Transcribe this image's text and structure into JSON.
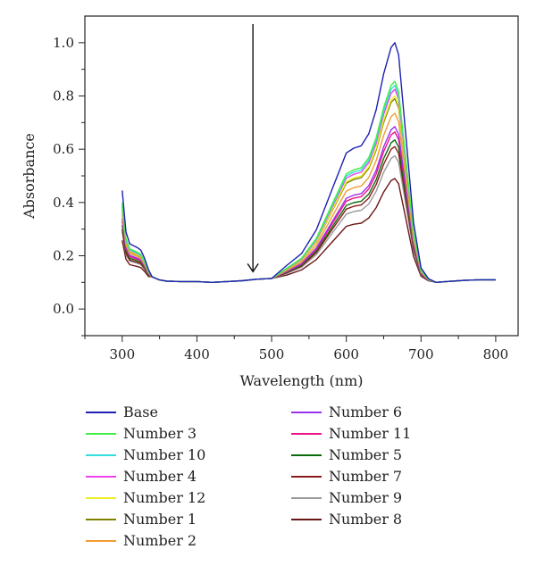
{
  "chart_data": {
    "type": "line",
    "xlabel": "Wavelength (nm)",
    "ylabel": "Absorbance",
    "xlim": [
      250,
      830
    ],
    "ylim": [
      -0.1,
      1.1
    ],
    "xticks": [
      300,
      400,
      500,
      600,
      700,
      800
    ],
    "yticks": [
      0.0,
      0.2,
      0.4,
      0.6,
      0.8,
      1.0
    ],
    "ytick_labels": [
      "0.0",
      "0.2",
      "0.4",
      "0.6",
      "0.8",
      "1.0"
    ],
    "grid": false,
    "legend_position": "bottom",
    "annotations": [
      {
        "type": "arrow",
        "x": 475,
        "y_start": 1.07,
        "y_end": 0.14,
        "direction": "down"
      }
    ],
    "base_profile": {
      "x": [
        300,
        305,
        310,
        315,
        320,
        325,
        330,
        335,
        340,
        350,
        360,
        380,
        400,
        420,
        440,
        460,
        480,
        500,
        520,
        540,
        560,
        580,
        600,
        610,
        620,
        630,
        640,
        650,
        660,
        665,
        670,
        680,
        690,
        700,
        710,
        720,
        740,
        760,
        780,
        800
      ],
      "y": [
        1.0,
        0.55,
        0.42,
        0.4,
        0.38,
        0.35,
        0.26,
        0.14,
        0.07,
        0.03,
        0.015,
        0.01,
        0.01,
        0.0,
        0.01,
        0.02,
        0.04,
        0.05,
        0.07,
        0.12,
        0.22,
        0.38,
        0.54,
        0.56,
        0.57,
        0.62,
        0.72,
        0.87,
        0.98,
        1.0,
        0.95,
        0.6,
        0.25,
        0.06,
        0.015,
        0.0,
        0.01,
        0.02,
        0.025,
        0.025
      ],
      "baseline": 0.1
    },
    "series": [
      {
        "name": "Base",
        "color": "#1f1fb4",
        "peak": 1.0,
        "start": 0.445
      },
      {
        "name": "Number 3",
        "color": "#44ee44",
        "peak": 0.855,
        "start": 0.4
      },
      {
        "name": "Number 10",
        "color": "#33dddd",
        "peak": 0.84,
        "start": 0.39
      },
      {
        "name": "Number 4",
        "color": "#ee44ee",
        "peak": 0.825,
        "start": 0.385
      },
      {
        "name": "Number 12",
        "color": "#eeee22",
        "peak": 0.8,
        "start": 0.375
      },
      {
        "name": "Number 1",
        "color": "#808000",
        "peak": 0.79,
        "start": 0.37
      },
      {
        "name": "Number 2",
        "color": "#f39c34",
        "peak": 0.735,
        "start": 0.355
      },
      {
        "name": "Number 6",
        "color": "#9b30ee",
        "peak": 0.685,
        "start": 0.34
      },
      {
        "name": "Number 11",
        "color": "#ee1188",
        "peak": 0.665,
        "start": 0.33
      },
      {
        "name": "Number 5",
        "color": "#0b6b0b",
        "peak": 0.635,
        "start": 0.315
      },
      {
        "name": "Number 7",
        "color": "#8b1a1a",
        "peak": 0.61,
        "start": 0.3
      },
      {
        "name": "Number 9",
        "color": "#999999",
        "peak": 0.575,
        "start": 0.29
      },
      {
        "name": "Number 8",
        "color": "#6b1616",
        "peak": 0.49,
        "start": 0.258
      }
    ],
    "legend_columns": [
      [
        "Base",
        "Number 3",
        "Number 10",
        "Number 4",
        "Number 12",
        "Number 1",
        "Number 2"
      ],
      [
        "Number 6",
        "Number 11",
        "Number 5",
        "Number 7",
        "Number 9",
        "Number 8"
      ]
    ]
  }
}
